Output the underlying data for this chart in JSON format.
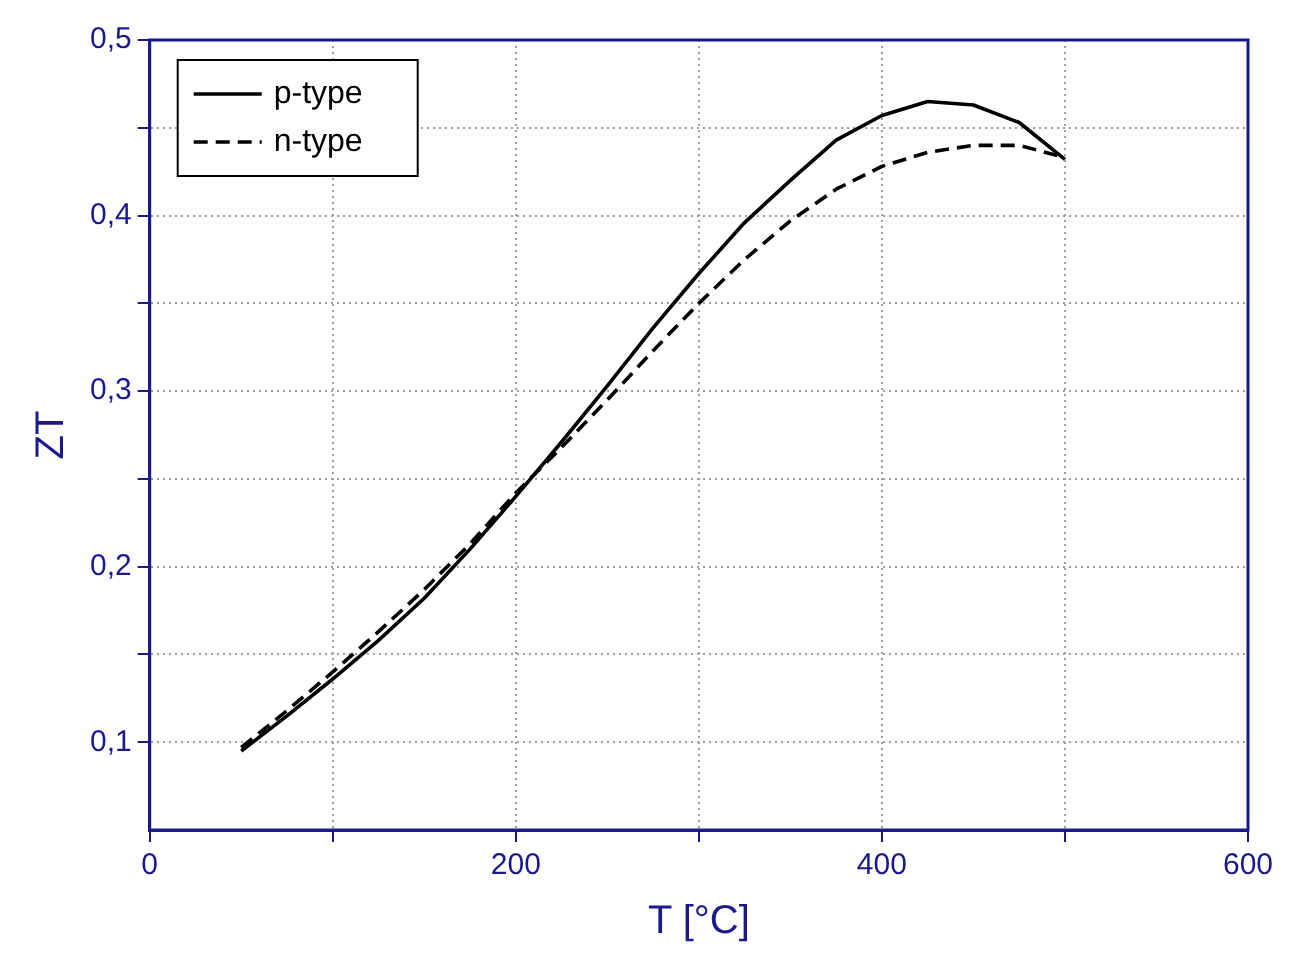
{
  "chart_data": {
    "type": "line",
    "xlabel": "T [°C]",
    "ylabel": "ZT",
    "x": [
      50,
      75,
      100,
      125,
      150,
      175,
      200,
      225,
      250,
      275,
      300,
      325,
      350,
      375,
      400,
      425,
      450,
      475,
      500
    ],
    "series": [
      {
        "name": "p-type",
        "color": "#000000",
        "line_style": "solid",
        "values": [
          0.095,
          0.115,
          0.136,
          0.158,
          0.182,
          0.21,
          0.24,
          0.271,
          0.303,
          0.336,
          0.367,
          0.396,
          0.42,
          0.443,
          0.457,
          0.465,
          0.463,
          0.453,
          0.432
        ]
      },
      {
        "name": "n-type",
        "color": "#000000",
        "line_style": "dashed",
        "values": [
          0.097,
          0.118,
          0.14,
          0.163,
          0.187,
          0.213,
          0.242,
          0.268,
          0.295,
          0.323,
          0.35,
          0.375,
          0.397,
          0.415,
          0.428,
          0.436,
          0.44,
          0.44,
          0.433
        ]
      }
    ],
    "xlim": [
      0,
      600
    ],
    "xticks": [
      0,
      {
        "value": 100,
        "label": null
      },
      200,
      {
        "value": 300,
        "label": null
      },
      400,
      {
        "value": 500,
        "label": null
      },
      600
    ],
    "ylim": [
      0.05,
      0.5
    ],
    "yticks": [
      {
        "value": 0.1,
        "label": "0,1"
      },
      {
        "value": 0.15,
        "label": null
      },
      {
        "value": 0.2,
        "label": "0,2"
      },
      {
        "value": 0.25,
        "label": null
      },
      {
        "value": 0.3,
        "label": "0,3"
      },
      {
        "value": 0.35,
        "label": null
      },
      {
        "value": 0.4,
        "label": "0,4"
      },
      {
        "value": 0.45,
        "label": null
      },
      {
        "value": 0.5,
        "label": "0,5"
      }
    ],
    "grid": true,
    "legend": "top left",
    "marker": "none"
  }
}
